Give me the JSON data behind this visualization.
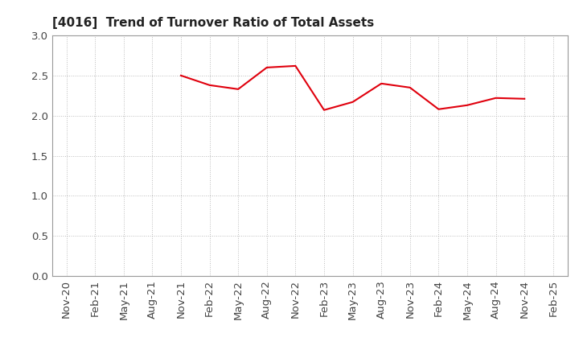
{
  "title": "[4016]  Trend of Turnover Ratio of Total Assets",
  "x_labels": [
    "Nov-20",
    "Feb-21",
    "May-21",
    "Aug-21",
    "Nov-21",
    "Feb-22",
    "May-22",
    "Aug-22",
    "Nov-22",
    "Feb-23",
    "May-23",
    "Aug-23",
    "Nov-23",
    "Feb-24",
    "May-24",
    "Aug-24",
    "Nov-24",
    "Feb-25"
  ],
  "y_values": [
    null,
    null,
    null,
    null,
    2.5,
    2.38,
    2.33,
    2.6,
    2.62,
    2.07,
    2.17,
    2.4,
    2.35,
    2.08,
    2.13,
    2.22,
    2.21,
    null
  ],
  "line_color": "#e0000d",
  "ylim": [
    0.0,
    3.0
  ],
  "yticks": [
    0.0,
    0.5,
    1.0,
    1.5,
    2.0,
    2.5,
    3.0
  ],
  "background_color": "#ffffff",
  "grid_color": "#bbbbbb",
  "title_fontsize": 11,
  "tick_fontsize": 9.5
}
